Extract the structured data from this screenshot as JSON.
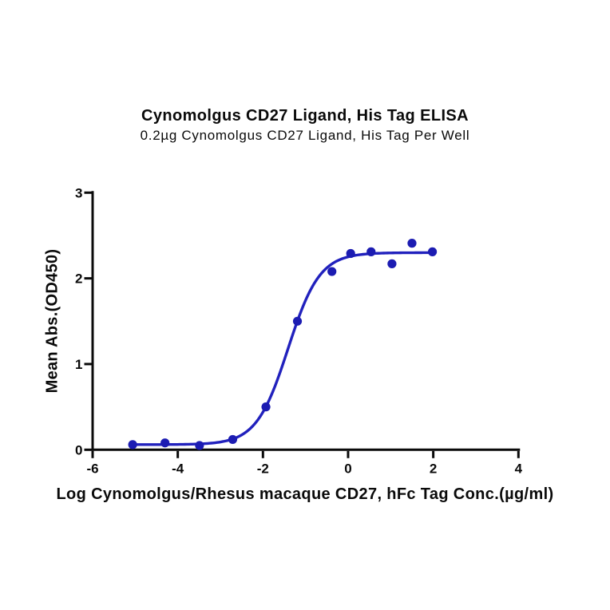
{
  "chart_data": {
    "type": "scatter",
    "title": "Cynomolgus CD27 Ligand, His Tag ELISA",
    "subtitle": "0.2µg Cynomolgus CD27 Ligand, His Tag Per Well",
    "xlabel": "Log Cynomolgus/Rhesus macaque CD27, hFc Tag Conc.(µg/ml)",
    "ylabel": "Mean Abs.(OD450)",
    "xlim": [
      -6,
      4
    ],
    "ylim": [
      0,
      3
    ],
    "x_ticks": [
      -6,
      -4,
      -2,
      0,
      2,
      4
    ],
    "y_ticks": [
      0,
      1,
      2,
      3
    ],
    "grid": false,
    "legend": null,
    "points": [
      {
        "x": -5.06,
        "y": 0.06
      },
      {
        "x": -4.3,
        "y": 0.08
      },
      {
        "x": -3.49,
        "y": 0.05
      },
      {
        "x": -2.71,
        "y": 0.12
      },
      {
        "x": -1.93,
        "y": 0.5
      },
      {
        "x": -1.19,
        "y": 1.5
      },
      {
        "x": -0.38,
        "y": 2.08
      },
      {
        "x": 0.06,
        "y": 2.29
      },
      {
        "x": 0.54,
        "y": 2.31
      },
      {
        "x": 1.03,
        "y": 2.17
      },
      {
        "x": 1.5,
        "y": 2.41
      },
      {
        "x": 1.98,
        "y": 2.31
      }
    ],
    "fit_curve": {
      "model": "4PL",
      "bottom": 0.06,
      "top": 2.3,
      "log_ec50": -1.41,
      "hill": 1.17,
      "x_start": -5.06,
      "x_end": 1.98
    },
    "colors": {
      "curve": "#2121bd",
      "point": "#1c1cb2",
      "axis": "#0a0a0a",
      "text": "#0a0a0a"
    }
  }
}
